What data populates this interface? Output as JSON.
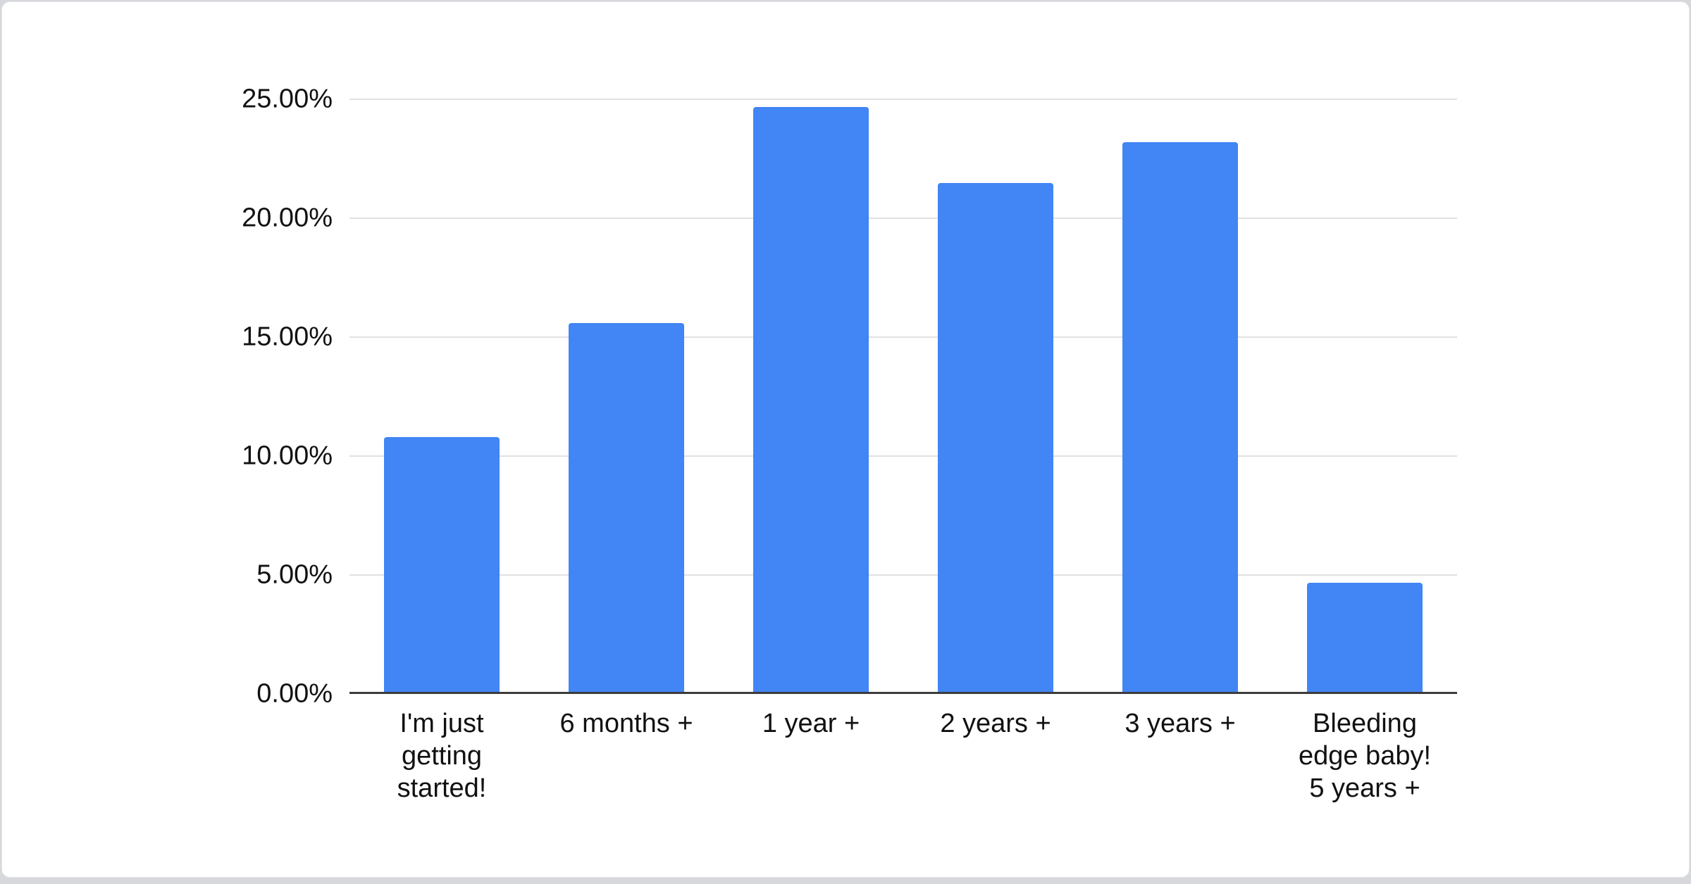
{
  "page": {
    "background_color": "#d6d8dc",
    "card_background": "#ffffff",
    "card_border_color": "#e4e6e9"
  },
  "chart_data": {
    "type": "bar",
    "title": "",
    "xlabel": "",
    "ylabel": "",
    "categories": [
      "I'm just getting started!",
      "6 months +",
      "1 year +",
      "2 years +",
      "3 years +",
      "Bleeding edge baby! 5 years +"
    ],
    "category_lines": [
      [
        "I'm just",
        "getting",
        "started!"
      ],
      [
        "6 months +"
      ],
      [
        "1 year +"
      ],
      [
        "2 years +"
      ],
      [
        "3 years +"
      ],
      [
        "Bleeding",
        "edge baby!",
        "5 years +"
      ]
    ],
    "values": [
      10.7,
      15.5,
      24.6,
      21.4,
      23.1,
      4.6
    ],
    "value_unit": "%",
    "ylim": [
      0,
      25
    ],
    "y_ticks": [
      {
        "value": 0,
        "label": "0.00%"
      },
      {
        "value": 5,
        "label": "5.00%"
      },
      {
        "value": 10,
        "label": "10.00%"
      },
      {
        "value": 15,
        "label": "15.00%"
      },
      {
        "value": 20,
        "label": "20.00%"
      },
      {
        "value": 25,
        "label": "25.00%"
      }
    ],
    "grid": true,
    "legend": "none",
    "bar_color": "#4285F4",
    "gridline_color": "#e1e1e1",
    "axis_line_color": "#3c3c3c",
    "label_color": "#111111"
  }
}
